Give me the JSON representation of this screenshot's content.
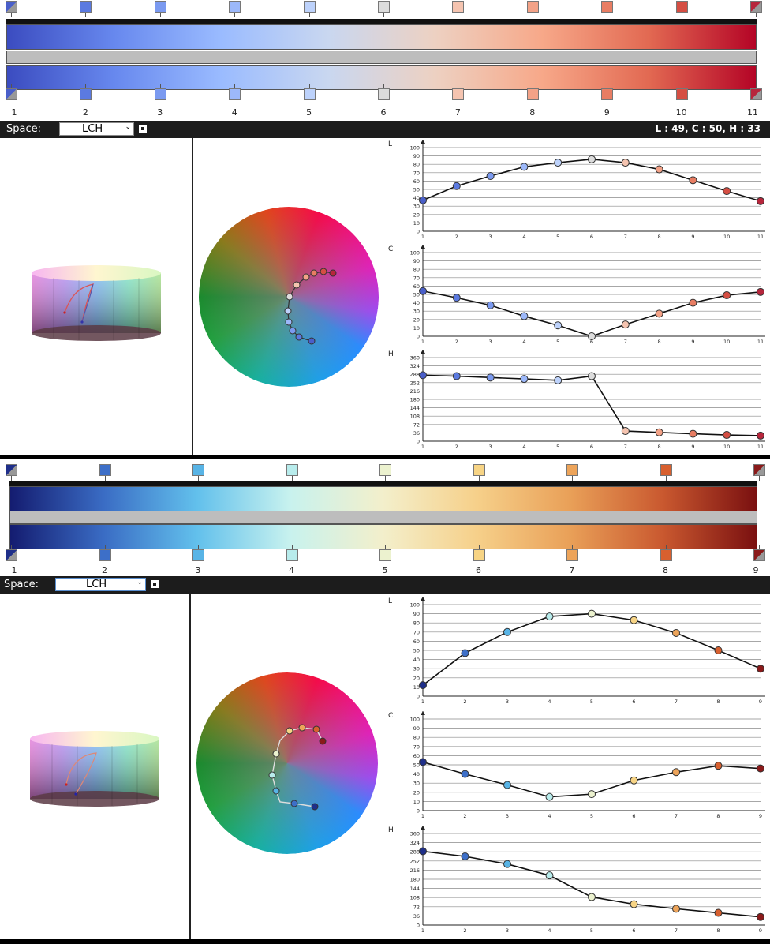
{
  "panels": [
    {
      "id": "top",
      "toolbar": {
        "space_label": "Space:",
        "space_value": "LCH",
        "readout": "L : 49, C : 50, H : 33"
      },
      "stops": [
        {
          "index": 1,
          "color": "#4a5fc9"
        },
        {
          "index": 2,
          "color": "#5b7ae0"
        },
        {
          "index": 3,
          "color": "#7b9af0"
        },
        {
          "index": 4,
          "color": "#9cb8fa"
        },
        {
          "index": 5,
          "color": "#bdd2fb"
        },
        {
          "index": 6,
          "color": "#dcdcdc"
        },
        {
          "index": 7,
          "color": "#f5c4b0"
        },
        {
          "index": 8,
          "color": "#f3a287"
        },
        {
          "index": 9,
          "color": "#e87d63"
        },
        {
          "index": 10,
          "color": "#d54e43"
        },
        {
          "index": 11,
          "color": "#b7263c"
        }
      ],
      "stop_numbers": [
        "1",
        "2",
        "3",
        "4",
        "5",
        "6",
        "7",
        "8",
        "9",
        "10",
        "11"
      ],
      "gradient": [
        "#3b4cc0",
        "#6788ee",
        "#9abbff",
        "#c9d7f0",
        "#edd1c2",
        "#f7a889",
        "#e26952",
        "#b40426"
      ],
      "charts": [
        {
          "label": "L",
          "ymax": 100,
          "yticks": [
            "100",
            "90",
            "80",
            "70",
            "60",
            "50",
            "40",
            "30",
            "20",
            "10",
            "0"
          ],
          "x": [
            "1",
            "2",
            "3",
            "4",
            "5",
            "6",
            "7",
            "8",
            "9",
            "10",
            "11"
          ],
          "values": [
            37,
            54,
            66,
            77,
            82,
            86,
            82,
            74,
            61,
            48,
            36
          ]
        },
        {
          "label": "C",
          "ymax": 100,
          "yticks": [
            "100",
            "90",
            "80",
            "70",
            "60",
            "50",
            "40",
            "30",
            "20",
            "10",
            "0"
          ],
          "x": [
            "1",
            "2",
            "3",
            "4",
            "5",
            "6",
            "7",
            "8",
            "9",
            "10",
            "11"
          ],
          "values": [
            54,
            46,
            37,
            24,
            13,
            0,
            14,
            27,
            40,
            49,
            53
          ]
        },
        {
          "label": "H",
          "ymax": 360,
          "yticks": [
            "360",
            "324",
            "288",
            "252",
            "216",
            "180",
            "144",
            "108",
            "72",
            "36",
            "0"
          ],
          "x": [
            "1",
            "2",
            "3",
            "4",
            "5",
            "6",
            "7",
            "8",
            "9",
            "10",
            "11"
          ],
          "values": [
            284,
            280,
            274,
            268,
            262,
            280,
            44,
            38,
            32,
            27,
            24
          ]
        }
      ]
    },
    {
      "id": "bottom",
      "toolbar": {
        "space_label": "Space:",
        "space_value": "LCH",
        "readout": ""
      },
      "stops": [
        {
          "index": 1,
          "color": "#1f2f8a"
        },
        {
          "index": 2,
          "color": "#3d6fc8"
        },
        {
          "index": 3,
          "color": "#58b4e6"
        },
        {
          "index": 4,
          "color": "#b8ecec"
        },
        {
          "index": 5,
          "color": "#ecf2cf"
        },
        {
          "index": 6,
          "color": "#f7d485"
        },
        {
          "index": 7,
          "color": "#eda45a"
        },
        {
          "index": 8,
          "color": "#d8602f"
        },
        {
          "index": 9,
          "color": "#8a1a1a"
        }
      ],
      "stop_numbers": [
        "1",
        "2",
        "3",
        "4",
        "5",
        "6",
        "7",
        "8",
        "9"
      ],
      "gradient": [
        "#141c70",
        "#3a6cc4",
        "#62c0ec",
        "#c8f2ee",
        "#f3efcb",
        "#f6d08a",
        "#e9a058",
        "#c9582f",
        "#7a1010"
      ],
      "charts": [
        {
          "label": "L",
          "ymax": 100,
          "yticks": [
            "100",
            "90",
            "80",
            "70",
            "60",
            "50",
            "40",
            "30",
            "20",
            "10",
            "0"
          ],
          "x": [
            "1",
            "2",
            "3",
            "4",
            "5",
            "6",
            "7",
            "8",
            "9"
          ],
          "values": [
            12,
            47,
            70,
            87,
            90,
            83,
            69,
            50,
            30
          ]
        },
        {
          "label": "C",
          "ymax": 100,
          "yticks": [
            "100",
            "90",
            "80",
            "70",
            "60",
            "50",
            "40",
            "30",
            "20",
            "10",
            "0"
          ],
          "x": [
            "1",
            "2",
            "3",
            "4",
            "5",
            "6",
            "7",
            "8",
            "9"
          ],
          "values": [
            53,
            40,
            28,
            15,
            18,
            33,
            42,
            49,
            46
          ]
        },
        {
          "label": "H",
          "ymax": 360,
          "yticks": [
            "360",
            "324",
            "288",
            "252",
            "216",
            "180",
            "144",
            "108",
            "72",
            "36",
            "0"
          ],
          "x": [
            "1",
            "2",
            "3",
            "4",
            "5",
            "6",
            "7",
            "8",
            "9"
          ],
          "values": [
            290,
            270,
            240,
            195,
            110,
            82,
            64,
            48,
            32
          ]
        }
      ]
    }
  ]
}
